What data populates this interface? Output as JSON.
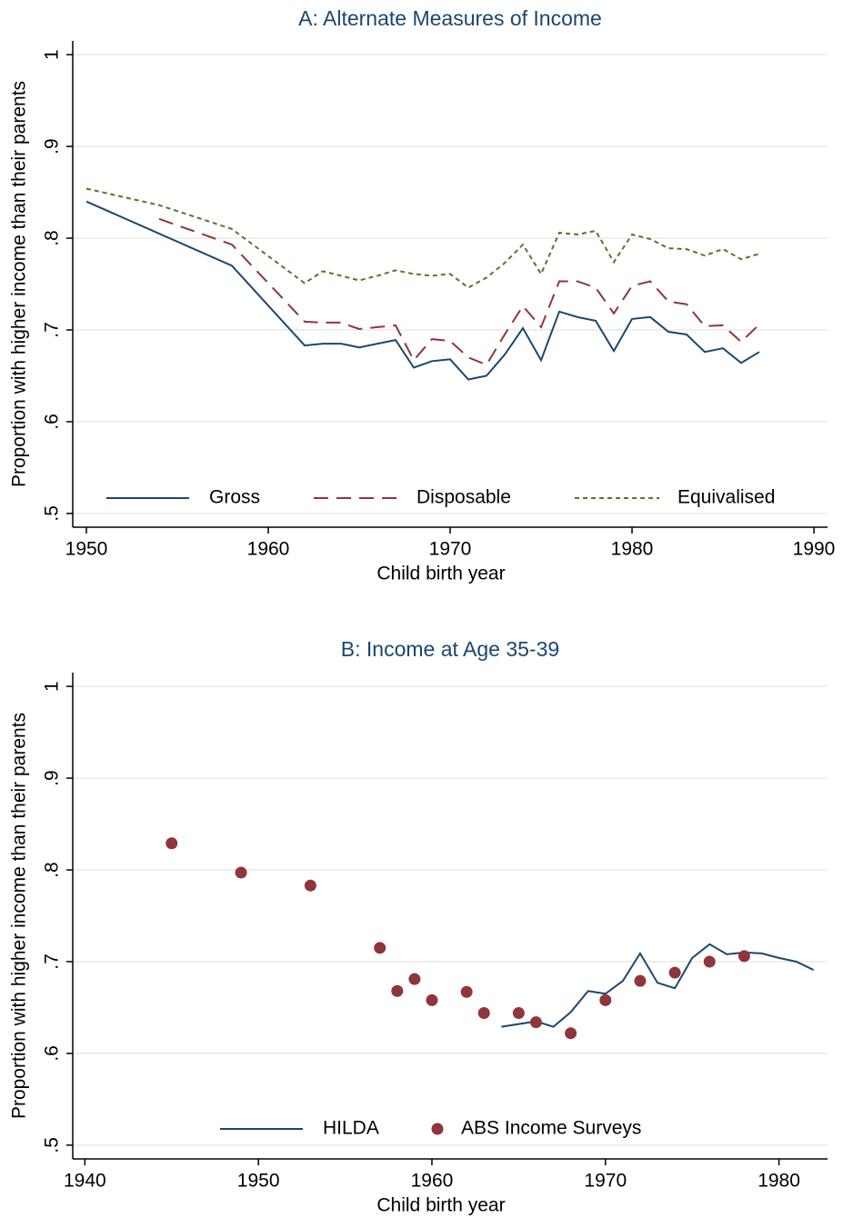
{
  "chart_data": [
    {
      "type": "line",
      "title": "A: Alternate Measures of Income",
      "x_label": "Child birth year",
      "y_label": "Proportion with higher income than their parents",
      "xlim": [
        1949.25,
        1990.75
      ],
      "xticks": [
        1950,
        1960,
        1970,
        1980,
        1990
      ],
      "ylim": [
        0.485,
        1.015
      ],
      "yticks": [
        {
          "value": 0.5,
          "label": ".5"
        },
        {
          "value": 0.6,
          "label": ".6"
        },
        {
          "value": 0.7,
          "label": ".7"
        },
        {
          "value": 0.8,
          "label": ".8"
        },
        {
          "value": 0.9,
          "label": ".9"
        },
        1
      ],
      "grid": true,
      "legend": "bottom",
      "series": [
        {
          "name": "Gross",
          "type": "line",
          "color": "#1a476f",
          "line_style": "solid",
          "x": [
            1950,
            1958,
            1962,
            1963,
            1964,
            1965,
            1966,
            1967,
            1968,
            1969,
            1970,
            1971,
            1972,
            1973,
            1974,
            1975,
            1976,
            1977,
            1978,
            1979,
            1980,
            1981,
            1982,
            1983,
            1984,
            1985,
            1986,
            1987
          ],
          "values": [
            0.84,
            0.77,
            0.683,
            0.685,
            0.685,
            0.681,
            0.685,
            0.689,
            0.659,
            0.666,
            0.668,
            0.646,
            0.65,
            0.673,
            0.702,
            0.667,
            0.72,
            0.714,
            0.71,
            0.677,
            0.712,
            0.714,
            0.698,
            0.695,
            0.676,
            0.68,
            0.664,
            0.676
          ]
        },
        {
          "name": "Disposable",
          "type": "line",
          "color": "#90353b",
          "line_style": "dashed",
          "x": [
            1954,
            1958,
            1962,
            1963,
            1964,
            1965,
            1966,
            1967,
            1968,
            1969,
            1970,
            1971,
            1972,
            1973,
            1974,
            1975,
            1976,
            1977,
            1978,
            1979,
            1980,
            1981,
            1982,
            1983,
            1984,
            1985,
            1986,
            1987
          ],
          "values": [
            0.821,
            0.793,
            0.709,
            0.708,
            0.708,
            0.701,
            0.703,
            0.705,
            0.667,
            0.69,
            0.688,
            0.67,
            0.662,
            0.695,
            0.726,
            0.703,
            0.753,
            0.753,
            0.746,
            0.718,
            0.748,
            0.753,
            0.731,
            0.728,
            0.704,
            0.705,
            0.687,
            0.706
          ]
        },
        {
          "name": "Equivalised",
          "type": "line",
          "color": "#55752f",
          "line_style": "dotted",
          "x": [
            1950,
            1954,
            1958,
            1962,
            1963,
            1964,
            1965,
            1966,
            1967,
            1968,
            1969,
            1970,
            1971,
            1972,
            1973,
            1974,
            1975,
            1976,
            1977,
            1978,
            1979,
            1980,
            1981,
            1982,
            1983,
            1984,
            1985,
            1986,
            1987
          ],
          "values": [
            0.854,
            0.836,
            0.81,
            0.751,
            0.764,
            0.759,
            0.754,
            0.759,
            0.765,
            0.761,
            0.759,
            0.761,
            0.746,
            0.757,
            0.773,
            0.793,
            0.761,
            0.806,
            0.804,
            0.808,
            0.774,
            0.804,
            0.799,
            0.789,
            0.788,
            0.781,
            0.788,
            0.777,
            0.783
          ]
        }
      ]
    },
    {
      "type": "combo",
      "title": "B: Income at Age 35-39",
      "x_label": "Child birth year",
      "y_label": "Proportion with higher income than their parents",
      "xlim": [
        1939.3,
        1982.8
      ],
      "xticks": [
        1940,
        1950,
        1960,
        1970,
        1980
      ],
      "ylim": [
        0.485,
        1.015
      ],
      "yticks": [
        {
          "value": 0.5,
          "label": ".5"
        },
        {
          "value": 0.6,
          "label": ".6"
        },
        {
          "value": 0.7,
          "label": ".7"
        },
        {
          "value": 0.8,
          "label": ".8"
        },
        {
          "value": 0.9,
          "label": ".9"
        },
        1
      ],
      "grid": true,
      "legend": "bottom",
      "series": [
        {
          "name": "HILDA",
          "type": "line",
          "color": "#1a476f",
          "line_style": "solid",
          "x": [
            1964,
            1965,
            1966,
            1967,
            1968,
            1969,
            1970,
            1971,
            1972,
            1973,
            1974,
            1975,
            1976,
            1977,
            1978,
            1979,
            1980,
            1981,
            1982
          ],
          "values": [
            0.629,
            0.632,
            0.635,
            0.629,
            0.645,
            0.668,
            0.665,
            0.679,
            0.709,
            0.677,
            0.671,
            0.704,
            0.719,
            0.708,
            0.71,
            0.709,
            0.704,
            0.7,
            0.691
          ]
        },
        {
          "name": "ABS Income Surveys",
          "type": "scatter",
          "color": "#90353b",
          "x": [
            1945,
            1949,
            1953,
            1957,
            1958,
            1959,
            1960,
            1962,
            1963,
            1965,
            1966,
            1968,
            1970,
            1972,
            1974,
            1976,
            1978
          ],
          "values": [
            0.829,
            0.797,
            0.783,
            0.715,
            0.668,
            0.681,
            0.658,
            0.667,
            0.644,
            0.644,
            0.634,
            0.622,
            0.658,
            0.679,
            0.688,
            0.7,
            0.706
          ]
        }
      ]
    }
  ]
}
